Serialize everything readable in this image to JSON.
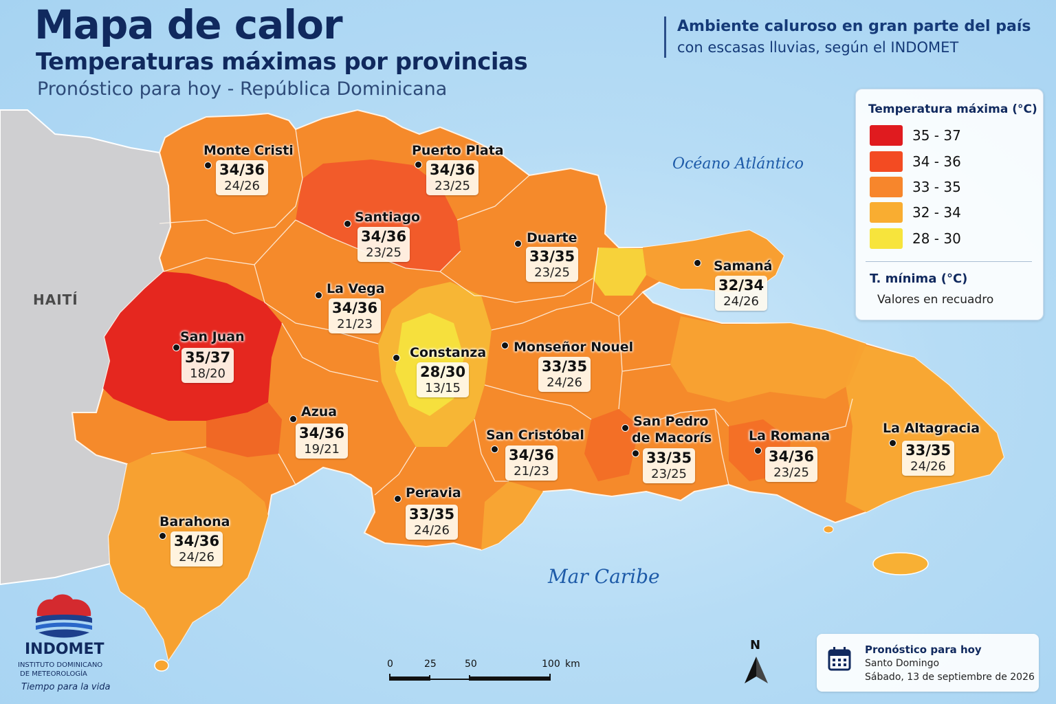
{
  "header": {
    "title": "Mapa de calor",
    "subtitle": "Temperaturas máximas por provincias",
    "subtitle2": "Pronóstico para hoy - República Dominicana",
    "headline_1": "Ambiente caluroso en gran parte del país",
    "headline_2": "con escasas lluvias, según el INDOMET"
  },
  "map_labels": {
    "atlantic": "Océano Atlántico",
    "caribbean": "Mar Caribe",
    "haiti": "HAITÍ"
  },
  "provinces": [
    {
      "name": "Monte Cristi",
      "max": "34/36",
      "min": "24/26"
    },
    {
      "name": "Puerto Plata",
      "max": "34/36",
      "min": "23/25"
    },
    {
      "name": "Santiago",
      "max": "34/36",
      "min": "23/25"
    },
    {
      "name": "Duarte",
      "max": "33/35",
      "min": "23/25"
    },
    {
      "name": "Samaná",
      "max": "32/34",
      "min": "24/26"
    },
    {
      "name": "La Vega",
      "max": "34/36",
      "min": "21/23"
    },
    {
      "name": "San Juan",
      "max": "35/37",
      "min": "18/20"
    },
    {
      "name": "Constanza",
      "max": "28/30",
      "min": "13/15"
    },
    {
      "name": "Monseñor Nouel",
      "max": "33/35",
      "min": "24/26"
    },
    {
      "name": "Azua",
      "max": "34/36",
      "min": "19/21"
    },
    {
      "name": "San Cristóbal",
      "max": "34/36",
      "min": "21/23"
    },
    {
      "name": "San Pedro",
      "name2": "de Macorís",
      "max": "33/35",
      "min": "23/25"
    },
    {
      "name": "La Romana",
      "max": "34/36",
      "min": "23/25"
    },
    {
      "name": "La Altagracia",
      "max": "33/35",
      "min": "24/26"
    },
    {
      "name": "Peravia",
      "max": "33/35",
      "min": "24/26"
    },
    {
      "name": "Barahona",
      "max": "34/36",
      "min": "24/26"
    }
  ],
  "legend": {
    "title": "Temperatura máxima (°C)",
    "items": [
      {
        "range": "35 - 37",
        "color": "#e01b1f"
      },
      {
        "range": "34 - 36",
        "color": "#f34b22"
      },
      {
        "range": "33 - 35",
        "color": "#f7862c"
      },
      {
        "range": "32 - 34",
        "color": "#f9ad31"
      },
      {
        "range": "28 - 30",
        "color": "#f7e43c"
      }
    ],
    "min_title": "T.  mínima (°C)",
    "min_note": "Valores en recuadro"
  },
  "logo": {
    "name": "INDOMET",
    "sub1": "INSTITUTO DOMINICANO",
    "sub2": "DE METEOROLOGÍA",
    "tagline": "Tiempo para la vida"
  },
  "scale": {
    "labels": [
      "0",
      "25",
      "50",
      "100"
    ],
    "unit": "km"
  },
  "north": "N",
  "date_box": {
    "line1": "Pronóstico para hoy",
    "line2": "Santo Domingo",
    "line3": "Sábado, 13 de septiembre de 2026",
    "icon": "calendar-icon"
  }
}
